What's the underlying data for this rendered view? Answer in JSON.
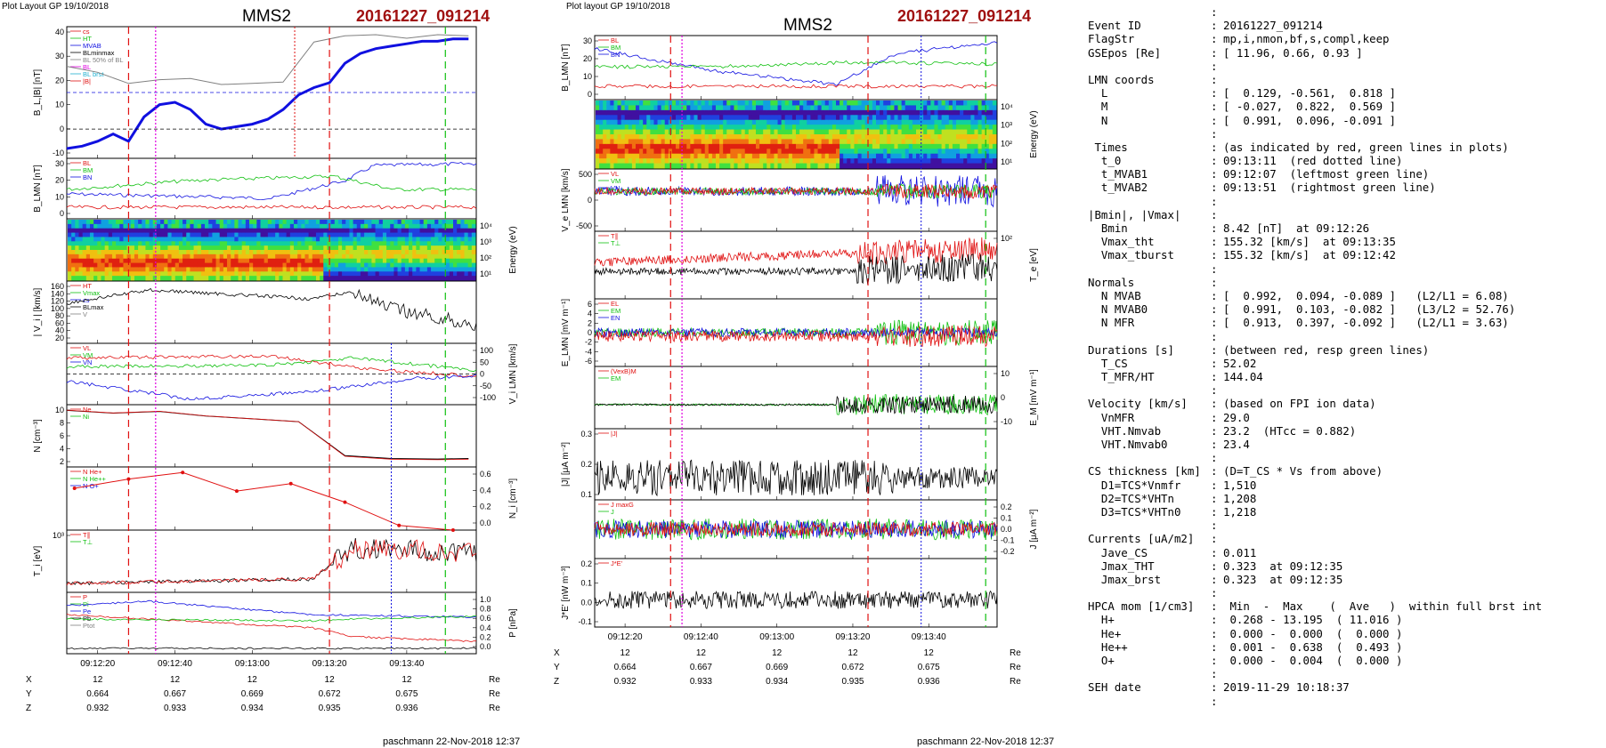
{
  "colors": {
    "red": "#e01010",
    "green": "#10c010",
    "blue": "#1010e0",
    "black": "#000000",
    "gray": "#808080",
    "magenta": "#e000e0",
    "maroon": "#a01010",
    "cyan": "#20b0d0"
  },
  "left": {
    "plot_layout": "Plot Layout GP 19/10/2018",
    "spacecraft": "MMS2",
    "event": "20161227_091214",
    "footer": "paschmann 22-Nov-2018 12:37",
    "time_ticks": [
      "09:12:20",
      "09:12:40",
      "09:13:00",
      "09:13:20",
      "09:13:40"
    ],
    "coords": {
      "labels": [
        "X",
        "Y",
        "Z"
      ],
      "units": "Re",
      "rows": [
        [
          "12",
          "12",
          "12",
          "12",
          "12"
        ],
        [
          "0.664",
          "0.667",
          "0.669",
          "0.672",
          "0.675"
        ],
        [
          "0.932",
          "0.933",
          "0.934",
          "0.935",
          "0.936"
        ]
      ]
    },
    "panels": [
      {
        "ylabel": "B_L,|B| [nT]",
        "ticks_left": [
          "40",
          "30",
          "20",
          "10",
          "0",
          "-10"
        ],
        "legend": [
          "cs",
          "HT",
          "MVAB",
          "BLminmax",
          "BL 50% of BL",
          "BL",
          "BL brst",
          "|B|"
        ]
      },
      {
        "ylabel": "B_LMN [nT]",
        "ticks_left": [
          "30",
          "20",
          "10",
          "0"
        ],
        "legend": [
          "BL",
          "BM",
          "BN"
        ]
      },
      {
        "ylabel_right": "Energy (eV)",
        "ticks_right": [
          "10⁴",
          "10³",
          "10²",
          "10¹"
        ]
      },
      {
        "ylabel": "| V_i | [km/s]",
        "ticks_left": [
          "160",
          "140",
          "120",
          "100",
          "80",
          "60",
          "40",
          "20"
        ],
        "legend": [
          "HT",
          "Vmax",
          "cs",
          "BLmax",
          "V"
        ]
      },
      {
        "ylabel_right": "V_i LMN [km/s]",
        "ticks_right": [
          "100",
          "50",
          "0",
          "-50",
          "-100"
        ],
        "legend": [
          "VL",
          "VM",
          "VN"
        ]
      },
      {
        "ylabel": "N [cm⁻³]",
        "ticks_left": [
          "10",
          "8",
          "6",
          "4",
          "2"
        ],
        "legend": [
          "Ne",
          "Ni"
        ]
      },
      {
        "ylabel_right": "N_i [cm⁻³]",
        "ticks_right": [
          "0.6",
          "0.4",
          "0.2",
          "0.0"
        ],
        "legend": [
          "N He+",
          "N He++",
          "N O+"
        ]
      },
      {
        "ylabel": "T_i [eV]",
        "ticks_left": [
          "10³"
        ],
        "legend": [
          "T∥",
          "T⊥"
        ]
      },
      {
        "ylabel_right": "P [nPa]",
        "ticks_right": [
          "1.0",
          "0.8",
          "0.6",
          "0.4",
          "0.2",
          "0.0"
        ],
        "legend": [
          "P",
          "Pi",
          "Pe",
          "Pb",
          "Ptot"
        ]
      }
    ]
  },
  "right": {
    "plot_layout": "Plot layout GP 19/10/2018",
    "spacecraft": "MMS2",
    "event": "20161227_091214",
    "footer": "paschmann 22-Nov-2018 12:37",
    "time_ticks": [
      "09:12:20",
      "09:12:40",
      "09:13:00",
      "09:13:20",
      "09:13:40"
    ],
    "coords": {
      "labels": [
        "X",
        "Y",
        "Z"
      ],
      "units": "Re",
      "rows": [
        [
          "12",
          "12",
          "12",
          "12",
          "12"
        ],
        [
          "0.664",
          "0.667",
          "0.669",
          "0.672",
          "0.675"
        ],
        [
          "0.932",
          "0.933",
          "0.934",
          "0.935",
          "0.936"
        ]
      ]
    },
    "panels": [
      {
        "ylabel": "B_LMN [nT]",
        "ticks_left": [
          "30",
          "20",
          "10",
          "0"
        ],
        "legend": [
          "BL",
          "BM",
          "BN"
        ]
      },
      {
        "ylabel_right": "Energy (eV)",
        "ticks_right": [
          "10⁴",
          "10³",
          "10²",
          "10¹"
        ]
      },
      {
        "ylabel": "V_e LMN [km/s]",
        "ticks_left": [
          "500",
          "0",
          "-500"
        ],
        "legend": [
          "VL",
          "VM",
          "VN"
        ]
      },
      {
        "ylabel_right": "T_e [eV]",
        "ticks_right": [
          "10²"
        ],
        "legend": [
          "T∥",
          "T⊥"
        ]
      },
      {
        "ylabel": "E_LMN [mV m⁻¹]",
        "ticks_left": [
          "6",
          "4",
          "2",
          "0",
          "-2",
          "-4",
          "-6"
        ],
        "legend": [
          "EL",
          "EM",
          "EN"
        ]
      },
      {
        "ylabel_right": "E_M [mV m⁻¹]",
        "ticks_right": [
          "10",
          "0",
          "-10"
        ],
        "legend": [
          "(VexB)M",
          "EM"
        ]
      },
      {
        "ylabel": "|J| [μA m⁻²]",
        "ticks_left": [
          "0.3",
          "0.2",
          "0.1"
        ],
        "legend": [
          "|J|"
        ]
      },
      {
        "ylabel_right": "J [μA m⁻²]",
        "ticks_right": [
          "0.2",
          "0.1",
          "0.0",
          "-0.1",
          "-0.2"
        ],
        "legend": [
          "J maxG",
          "J"
        ]
      },
      {
        "ylabel": "J*E' [nW m⁻³]",
        "ticks_left": [
          "0.2",
          "0.1",
          "0.0",
          "-0.1"
        ],
        "legend": [
          "J*E'"
        ]
      }
    ]
  },
  "info": [
    {
      "k": "",
      "v": ""
    },
    {
      "k": "Event ID",
      "v": "20161227_091214"
    },
    {
      "k": "FlagStr",
      "v": "mp,i,nmon,bf,s,compl,keep"
    },
    {
      "k": "GSEpos [Re]",
      "v": "[ 11.96, 0.66, 0.93 ]"
    },
    {
      "k": "",
      "v": ""
    },
    {
      "k": "LMN coords",
      "v": ""
    },
    {
      "k": "  L",
      "v": "[  0.129, -0.561,  0.818 ]"
    },
    {
      "k": "  M",
      "v": "[ -0.027,  0.822,  0.569 ]"
    },
    {
      "k": "  N",
      "v": "[  0.991,  0.096, -0.091 ]"
    },
    {
      "k": "",
      "v": ""
    },
    {
      "k": " Times",
      "v": "(as indicated by red, green lines in plots)"
    },
    {
      "k": "  t_0",
      "v": "09:13:11  (red dotted line)"
    },
    {
      "k": "  t_MVAB1",
      "v": "09:12:07  (leftmost green line)"
    },
    {
      "k": "  t_MVAB2",
      "v": "09:13:51  (rightmost green line)"
    },
    {
      "k": "",
      "v": ""
    },
    {
      "k": "|Bmin|, |Vmax|",
      "v": ""
    },
    {
      "k": "  Bmin",
      "v": "8.42 [nT]  at 09:12:26"
    },
    {
      "k": "  Vmax_tht",
      "v": "155.32 [km/s]  at 09:13:35"
    },
    {
      "k": "  Vmax_tburst",
      "v": "155.32 [km/s]  at 09:12:42"
    },
    {
      "k": "",
      "v": ""
    },
    {
      "k": "Normals",
      "v": ""
    },
    {
      "k": "  N MVAB",
      "v": "[  0.992,  0.094, -0.089 ]   (L2/L1 = 6.08)"
    },
    {
      "k": "  N MVAB0",
      "v": "[  0.991,  0.103, -0.082 ]   (L3/L2 = 52.76)"
    },
    {
      "k": "  N MFR",
      "v": "[  0.913,  0.397, -0.092 ]   (L2/L1 = 3.63)"
    },
    {
      "k": "",
      "v": ""
    },
    {
      "k": "Durations [s]",
      "v": "(between red, resp green lines)"
    },
    {
      "k": "  T_CS",
      "v": "52.02"
    },
    {
      "k": "  T_MFR/HT",
      "v": "144.04"
    },
    {
      "k": "",
      "v": ""
    },
    {
      "k": "Velocity [km/s]",
      "v": "(based on FPI ion data)"
    },
    {
      "k": "  VnMFR",
      "v": "29.0"
    },
    {
      "k": "  VHT.Nmvab",
      "v": "23.2  (HTcc = 0.882)"
    },
    {
      "k": "  VHT.Nmvab0",
      "v": "23.4"
    },
    {
      "k": "",
      "v": ""
    },
    {
      "k": "CS thickness [km]",
      "v": "(D=T_CS * Vs from above)"
    },
    {
      "k": "  D1=TCS*Vnmfr",
      "v": "1,510"
    },
    {
      "k": "  D2=TCS*VHTn",
      "v": "1,208"
    },
    {
      "k": "  D3=TCS*VHTn0",
      "v": "1,218"
    },
    {
      "k": "",
      "v": ""
    },
    {
      "k": "Currents [uA/m2]",
      "v": ""
    },
    {
      "k": "  Jave_CS",
      "v": "0.011"
    },
    {
      "k": "  Jmax_THT",
      "v": "0.323  at 09:12:35"
    },
    {
      "k": "  Jmax_brst",
      "v": "0.323  at 09:12:35"
    },
    {
      "k": "",
      "v": ""
    },
    {
      "k": "HPCA mom [1/cm3]",
      "v": " Min  -  Max    (  Ave   )  within full brst int"
    },
    {
      "k": "  H+",
      "v": " 0.268 - 13.195  ( 11.016 )"
    },
    {
      "k": "  He+",
      "v": " 0.000 -  0.000  (  0.000 )"
    },
    {
      "k": "  He++",
      "v": " 0.001 -  0.638  (  0.493 )"
    },
    {
      "k": "  O+",
      "v": " 0.000 -  0.004  (  0.000 )"
    },
    {
      "k": "",
      "v": ""
    },
    {
      "k": "SEH date",
      "v": "2019-11-29 10:18:37"
    },
    {
      "k": "",
      "v": ""
    }
  ],
  "chart_data": [
    {
      "type": "line",
      "title": "MMS2 20161227_091214",
      "series": [
        {
          "name": "BL",
          "x": [
            "09:12:12",
            "09:12:16",
            "09:12:20",
            "09:12:24",
            "09:12:28",
            "09:12:32",
            "09:12:36",
            "09:12:40",
            "09:12:44",
            "09:12:48",
            "09:12:52",
            "09:12:56",
            "09:13:00",
            "09:13:04",
            "09:13:08",
            "09:13:12",
            "09:13:16",
            "09:13:20",
            "09:13:24",
            "09:13:28",
            "09:13:32",
            "09:13:36",
            "09:13:40",
            "09:13:44",
            "09:13:48",
            "09:13:52",
            "09:13:56"
          ],
          "values": [
            -8,
            -7,
            -5,
            -2,
            -5,
            5,
            10,
            11,
            8,
            2,
            0,
            1,
            2,
            4,
            8,
            14,
            17,
            19,
            27,
            31,
            33,
            34,
            35,
            36,
            36,
            37,
            37
          ]
        },
        {
          "name": "|B|",
          "x": [
            "09:12:12",
            "09:12:20",
            "09:12:28",
            "09:12:36",
            "09:12:44",
            "09:12:52",
            "09:13:00",
            "09:13:08",
            "09:13:16",
            "09:13:24",
            "09:13:32",
            "09:13:40",
            "09:13:48",
            "09:13:56"
          ],
          "values": [
            25,
            24,
            18,
            21,
            20,
            19,
            18,
            20,
            35,
            39,
            38,
            38,
            38,
            39
          ]
        }
      ]
    },
    {
      "type": "line",
      "title": "N",
      "series": [
        {
          "name": "Ni",
          "x": [
            "09:12:12",
            "09:12:24",
            "09:12:36",
            "09:12:48",
            "09:13:00",
            "09:13:12",
            "09:13:24",
            "09:13:36",
            "09:13:48",
            "09:13:56"
          ],
          "values": [
            10,
            9.5,
            9.8,
            9,
            8.5,
            8,
            2,
            1.5,
            1.4,
            1.5
          ]
        }
      ]
    },
    {
      "type": "line",
      "title": "N He++",
      "series": [
        {
          "name": "N He++",
          "x": [
            "09:12:14",
            "09:12:28",
            "09:12:42",
            "09:12:56",
            "09:13:10",
            "09:13:24",
            "09:13:38",
            "09:13:52"
          ],
          "values": [
            0.45,
            0.55,
            0.62,
            0.42,
            0.5,
            0.3,
            0.05,
            0.0
          ]
        }
      ]
    }
  ]
}
